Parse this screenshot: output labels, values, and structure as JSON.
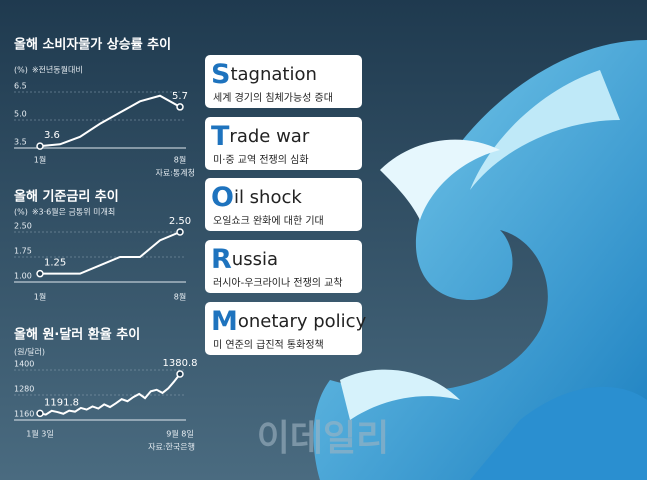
{
  "chart_data": [
    {
      "type": "line",
      "title": "올해 소비자물가 상승률 추이",
      "y_label": "(%)",
      "note": "※전년동월대비",
      "source": "자료:통계청",
      "categories": [
        "1월",
        null,
        null,
        null,
        null,
        null,
        null,
        "8월"
      ],
      "values": [
        3.6,
        3.7,
        4.1,
        4.8,
        5.4,
        6.0,
        6.3,
        5.7
      ],
      "value_labels": [
        "3.6",
        null,
        null,
        null,
        null,
        null,
        null,
        "5.7"
      ],
      "ylim": [
        3.5,
        6.5
      ],
      "yticks": [
        3.5,
        {
          "value": 5,
          "label": "5.0"
        },
        6.5
      ],
      "color": "#ffffff"
    },
    {
      "type": "line",
      "title": "올해 기준금리 추이",
      "y_label": "(%)",
      "note": "※3·6월은 금통위 미개최",
      "categories": [
        "1월",
        null,
        null,
        null,
        null,
        null,
        null,
        "8월"
      ],
      "values": [
        1.25,
        1.25,
        1.25,
        1.5,
        1.75,
        1.75,
        2.25,
        2.5
      ],
      "value_labels": [
        "1.25",
        null,
        null,
        null,
        null,
        null,
        null,
        "2.50"
      ],
      "ylim": [
        1,
        2.5
      ],
      "yticks": [
        {
          "value": 1,
          "label": "1.00"
        },
        1.75,
        {
          "value": 2.5,
          "label": "2.50"
        }
      ],
      "color": "#ffffff"
    },
    {
      "type": "line",
      "title": "올해 원·달러 환율 추이",
      "y_label": "(원/달러)",
      "source": "자료:한국은행",
      "categories": [
        "1월 3일",
        null,
        null,
        null,
        null,
        null,
        null,
        null,
        null,
        null,
        null,
        null,
        null,
        null,
        null,
        null,
        null,
        null,
        null,
        null,
        null,
        null,
        null,
        null,
        "9월 8일"
      ],
      "values": [
        1191.8,
        1186,
        1204,
        1198,
        1190,
        1205,
        1200,
        1218,
        1210,
        1225,
        1215,
        1235,
        1222,
        1240,
        1260,
        1250,
        1270,
        1285,
        1265,
        1298,
        1305,
        1290,
        1312,
        1345,
        1380.8
      ],
      "ylim": [
        1160,
        1400
      ],
      "yticks": [
        1160,
        1280,
        1400
      ],
      "color": "#ffffff"
    }
  ],
  "cards": [
    {
      "initial": "S",
      "rest": "tagnation",
      "desc": "세계 경기의 침체가능성 증대"
    },
    {
      "initial": "T",
      "rest": "rade war",
      "desc": "미·중 교역 전쟁의 심화"
    },
    {
      "initial": "O",
      "rest": "il shock",
      "desc": "오일쇼크 완화에 대한 기대"
    },
    {
      "initial": "R",
      "rest": "ussia",
      "desc": "러시아-우크라이나 전쟁의 교착"
    },
    {
      "initial": "M",
      "rest": "onetary policy",
      "desc": "미 연준의 급진적 통화정책"
    }
  ],
  "watermark": "이데일리"
}
